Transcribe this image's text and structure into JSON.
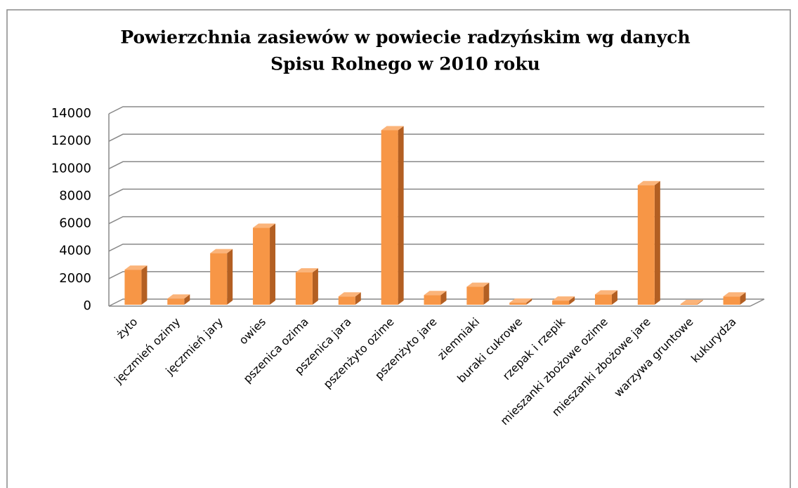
{
  "chart_data": {
    "type": "bar3d",
    "title": [
      "Powierzchnia zasiewów w powiecie radzyńskim wg danych",
      "Spisu Rolnego  w 2010 roku"
    ],
    "categories": [
      "żyto",
      "jęczmień ozimy",
      "jęczmień jary",
      "owies",
      "pszenica ozima",
      "pszenica jara",
      "pszenżyto ozime",
      "pszenżyto jare",
      "ziemniaki",
      "buraki cukrowe",
      "rzepak i rzepik",
      "mieszanki zbożowe ozime",
      "mieszanki zbożowe jare",
      "warzywa gruntowe",
      "kukurydza"
    ],
    "values": [
      2550,
      450,
      3750,
      5600,
      2350,
      600,
      12700,
      700,
      1300,
      150,
      300,
      750,
      8700,
      50,
      600
    ],
    "color": "#f79646",
    "ylim": [
      0,
      14000
    ],
    "yticks": [
      0,
      2000,
      4000,
      6000,
      8000,
      10000,
      12000,
      14000
    ],
    "grid": true
  }
}
